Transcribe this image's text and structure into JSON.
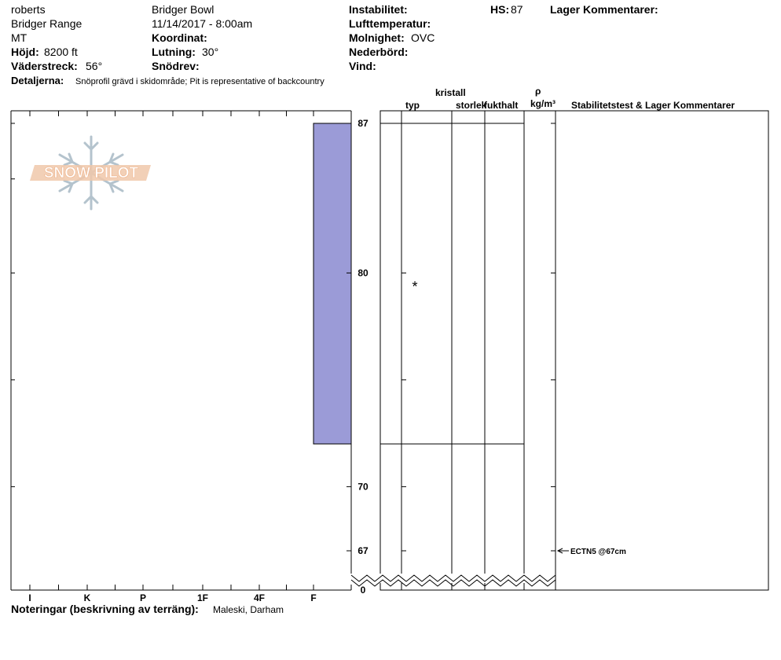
{
  "header": {
    "observer": "roberts",
    "range": "Bridger Range",
    "state": "MT",
    "elevation_label": "Höjd:",
    "elevation_value": "8200 ft",
    "aspect_label": "Väderstreck:",
    "aspect_value": "56°",
    "location": "Bridger Bowl",
    "datetime": "11/14/2017 - 8:00am",
    "coord_label": "Koordinat:",
    "slope_label": "Lutning:",
    "slope_value": "30°",
    "wind_loading_label": "Snödrev:",
    "instability_label": "Instabilitet:",
    "air_temp_label": "Lufttemperatur:",
    "sky_label": "Molnighet:",
    "sky_value": "OVC",
    "precip_label": "Nederbörd:",
    "wind_label": "Vind:",
    "hs_label": "HS:",
    "hs_value": "87",
    "layer_comments_label": "Lager Kommentarer:",
    "details_label": "Detaljerna:",
    "details_value": "Snöprofil grävd i skidområde;  Pit is representative of backcountry"
  },
  "columns": {
    "crystal": "kristall",
    "type": "typ",
    "size": "storlek",
    "moisture": "fukthalt",
    "rho": "ρ",
    "density_unit": "kg/m³",
    "stability": "Stabilitetstest & Lager Kommentarer"
  },
  "notes": {
    "label": "Noteringar (beskrivning av terräng):",
    "value": "Maleski, Darham"
  },
  "logo_text": "SNOW PILOT",
  "colors": {
    "layer_fill": "#9b9bd7",
    "logo_orange": "#f0b48c",
    "logo_blue": "#b4c3cd"
  },
  "chart_data": {
    "type": "bar",
    "hardness_scale": [
      "I",
      "K",
      "P",
      "1F",
      "4F",
      "F"
    ],
    "depth_ticks": [
      87,
      80,
      70,
      67,
      0
    ],
    "depth_range_cm": [
      67,
      87
    ],
    "broken_axis_below_cm": 67,
    "layers": [
      {
        "top_cm": 87,
        "bottom_cm": 72,
        "hardness": "F",
        "grain_type_symbol": "*"
      }
    ],
    "layer_boundaries_cm": [
      87,
      72
    ],
    "tests": [
      {
        "depth_cm": 67,
        "label": "ECTN5 @67cm"
      }
    ]
  }
}
